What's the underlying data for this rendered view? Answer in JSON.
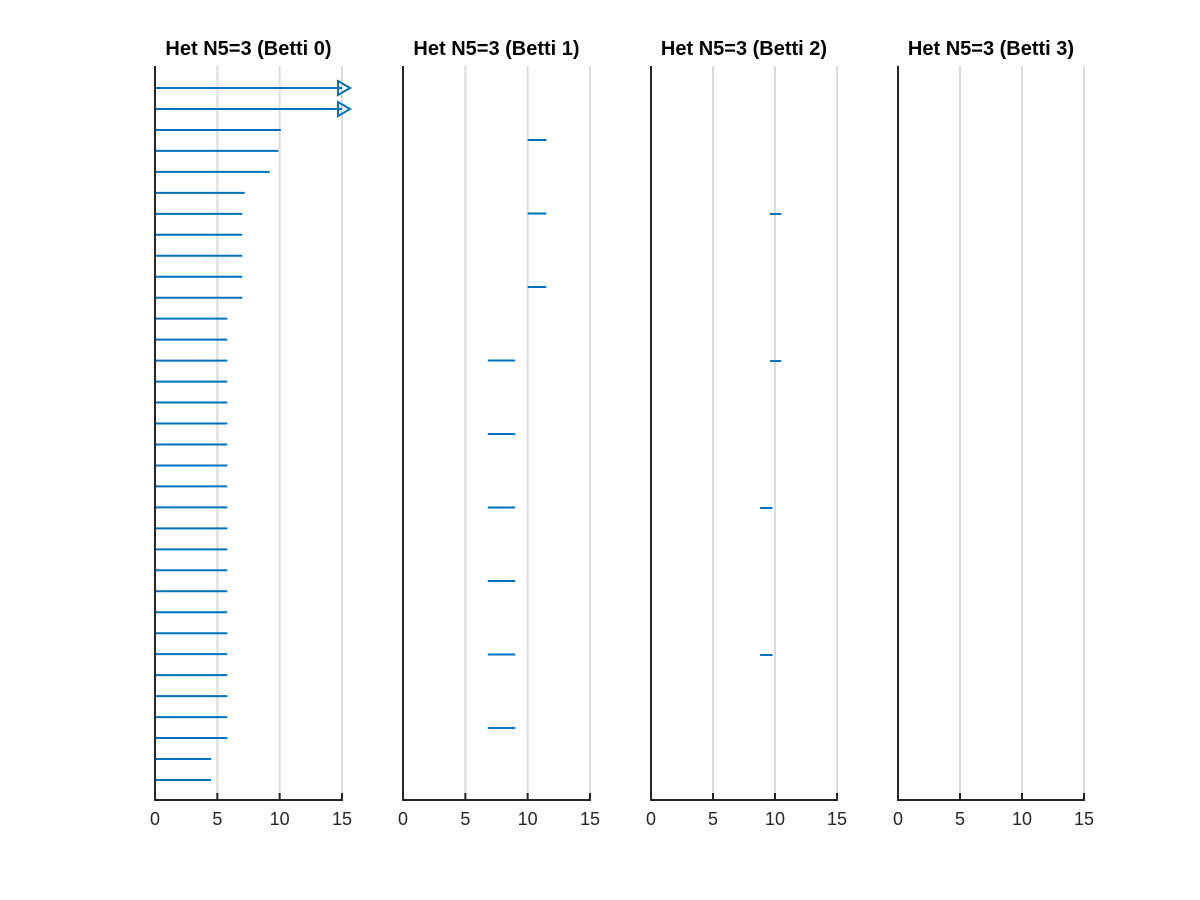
{
  "figure": {
    "background": "#ffffff"
  },
  "chart_data": [
    {
      "type": "barcode",
      "title": "Het N5=3 (Betti 0)",
      "xlim": [
        0,
        15
      ],
      "xticks": [
        0,
        5,
        10,
        15
      ],
      "grid": true,
      "bar_color": "#0072bd",
      "n_rows": 34,
      "bars": [
        {
          "birth": 0,
          "death": 15,
          "infinite": true
        },
        {
          "birth": 0,
          "death": 15,
          "infinite": true
        },
        {
          "birth": 0,
          "death": 10.1
        },
        {
          "birth": 0,
          "death": 9.9
        },
        {
          "birth": 0,
          "death": 9.2
        },
        {
          "birth": 0,
          "death": 7.2
        },
        {
          "birth": 0,
          "death": 7.0
        },
        {
          "birth": 0,
          "death": 7.0
        },
        {
          "birth": 0,
          "death": 7.0
        },
        {
          "birth": 0,
          "death": 7.0
        },
        {
          "birth": 0,
          "death": 7.0
        },
        {
          "birth": 0,
          "death": 5.8
        },
        {
          "birth": 0,
          "death": 5.8
        },
        {
          "birth": 0,
          "death": 5.8
        },
        {
          "birth": 0,
          "death": 5.8
        },
        {
          "birth": 0,
          "death": 5.8
        },
        {
          "birth": 0,
          "death": 5.8
        },
        {
          "birth": 0,
          "death": 5.8
        },
        {
          "birth": 0,
          "death": 5.8
        },
        {
          "birth": 0,
          "death": 5.8
        },
        {
          "birth": 0,
          "death": 5.8
        },
        {
          "birth": 0,
          "death": 5.8
        },
        {
          "birth": 0,
          "death": 5.8
        },
        {
          "birth": 0,
          "death": 5.8
        },
        {
          "birth": 0,
          "death": 5.8
        },
        {
          "birth": 0,
          "death": 5.8
        },
        {
          "birth": 0,
          "death": 5.8
        },
        {
          "birth": 0,
          "death": 5.8
        },
        {
          "birth": 0,
          "death": 5.8
        },
        {
          "birth": 0,
          "death": 5.8
        },
        {
          "birth": 0,
          "death": 5.8
        },
        {
          "birth": 0,
          "death": 5.8
        },
        {
          "birth": 0,
          "death": 4.5
        },
        {
          "birth": 0,
          "death": 4.5
        }
      ]
    },
    {
      "type": "barcode",
      "title": "Het N5=3 (Betti 1)",
      "xlim": [
        0,
        15
      ],
      "xticks": [
        0,
        5,
        10,
        15
      ],
      "grid": true,
      "bar_color": "#0072bd",
      "n_rows": 9,
      "bars": [
        {
          "birth": 10.0,
          "death": 11.5
        },
        {
          "birth": 10.0,
          "death": 11.5
        },
        {
          "birth": 10.0,
          "death": 11.5
        },
        {
          "birth": 6.8,
          "death": 9.0
        },
        {
          "birth": 6.8,
          "death": 9.0
        },
        {
          "birth": 6.8,
          "death": 9.0
        },
        {
          "birth": 6.8,
          "death": 9.0
        },
        {
          "birth": 6.8,
          "death": 9.0
        },
        {
          "birth": 6.8,
          "death": 9.0
        }
      ]
    },
    {
      "type": "barcode",
      "title": "Het N5=3 (Betti 2)",
      "xlim": [
        0,
        15
      ],
      "xticks": [
        0,
        5,
        10,
        15
      ],
      "grid": true,
      "bar_color": "#0072bd",
      "n_rows": 4,
      "bars": [
        {
          "birth": 9.6,
          "death": 10.5
        },
        {
          "birth": 9.6,
          "death": 10.5
        },
        {
          "birth": 8.8,
          "death": 9.8
        },
        {
          "birth": 8.8,
          "death": 9.8
        }
      ]
    },
    {
      "type": "barcode",
      "title": "Het N5=3 (Betti 3)",
      "xlim": [
        0,
        15
      ],
      "xticks": [
        0,
        5,
        10,
        15
      ],
      "grid": true,
      "bar_color": "#0072bd",
      "n_rows": 0,
      "bars": []
    }
  ]
}
